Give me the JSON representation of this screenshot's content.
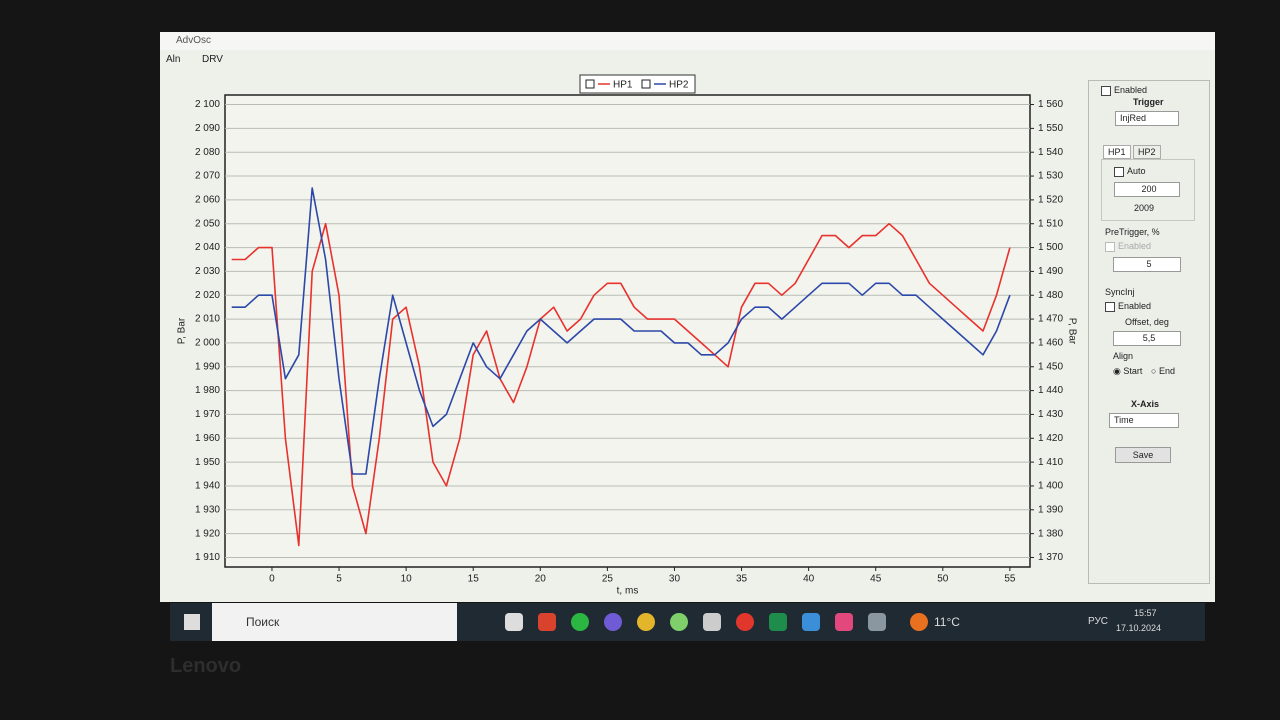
{
  "window": {
    "title": "AdvOsc",
    "menu": [
      "Aln",
      "DRV"
    ]
  },
  "chart_data": {
    "type": "line",
    "xlabel": "t, ms",
    "ylabel": "P, Bar",
    "y2label": "P, Bar",
    "x": [
      -3,
      -2,
      -1,
      0,
      1,
      2,
      3,
      4,
      5,
      6,
      7,
      8,
      9,
      10,
      11,
      12,
      13,
      14,
      15,
      16,
      17,
      18,
      19,
      20,
      21,
      22,
      23,
      24,
      25,
      26,
      27,
      28,
      29,
      30,
      31,
      32,
      33,
      34,
      35,
      36,
      37,
      38,
      39,
      40,
      41,
      42,
      43,
      44,
      45,
      46,
      47,
      48,
      49,
      50,
      51,
      52,
      53,
      54,
      55
    ],
    "series": [
      {
        "name": "HP1",
        "color": "#e8322e",
        "values": [
          2035,
          2035,
          2040,
          2040,
          1960,
          1915,
          2030,
          2050,
          2020,
          1940,
          1920,
          1960,
          2010,
          2015,
          1990,
          1950,
          1940,
          1960,
          1995,
          2005,
          1985,
          1975,
          1990,
          2010,
          2015,
          2005,
          2010,
          2020,
          2025,
          2025,
          2015,
          2010,
          2010,
          2010,
          2005,
          2000,
          1995,
          1990,
          2015,
          2025,
          2025,
          2020,
          2025,
          2035,
          2045,
          2045,
          2040,
          2045,
          2045,
          2050,
          2045,
          2035,
          2025,
          2020,
          2015,
          2010,
          2005,
          2020,
          2040
        ]
      },
      {
        "name": "HP2",
        "color": "#2c48a8",
        "axis": "y2",
        "values": [
          1475,
          1475,
          1480,
          1480,
          1445,
          1455,
          1525,
          1495,
          1445,
          1405,
          1405,
          1445,
          1480,
          1460,
          1440,
          1425,
          1430,
          1445,
          1460,
          1450,
          1445,
          1455,
          1465,
          1470,
          1465,
          1460,
          1465,
          1470,
          1470,
          1470,
          1465,
          1465,
          1465,
          1460,
          1460,
          1455,
          1455,
          1460,
          1470,
          1475,
          1475,
          1470,
          1475,
          1480,
          1485,
          1485,
          1485,
          1480,
          1485,
          1485,
          1480,
          1480,
          1475,
          1470,
          1465,
          1460,
          1455,
          1465,
          1480
        ]
      }
    ],
    "xlim": [
      -3.5,
      56.5
    ],
    "ylim": [
      1906,
      2104
    ],
    "y2lim": [
      1366,
      1564
    ],
    "xticks": [
      0,
      5,
      10,
      15,
      20,
      25,
      30,
      35,
      40,
      45,
      50,
      55
    ],
    "yticks": [
      {
        "value": 1910,
        "label": "1 910"
      },
      {
        "value": 1920,
        "label": "1 920"
      },
      {
        "value": 1930,
        "label": "1 930"
      },
      {
        "value": 1940,
        "label": "1 940"
      },
      {
        "value": 1950,
        "label": "1 950"
      },
      {
        "value": 1960,
        "label": "1 960"
      },
      {
        "value": 1970,
        "label": "1 970"
      },
      {
        "value": 1980,
        "label": "1 980"
      },
      {
        "value": 1990,
        "label": "1 990"
      },
      {
        "value": 2000,
        "label": "2 000"
      },
      {
        "value": 2010,
        "label": "2 010"
      },
      {
        "value": 2020,
        "label": "2 020"
      },
      {
        "value": 2030,
        "label": "2 030"
      },
      {
        "value": 2040,
        "label": "2 040"
      },
      {
        "value": 2050,
        "label": "2 050"
      },
      {
        "value": 2060,
        "label": "2 060"
      },
      {
        "value": 2070,
        "label": "2 070"
      },
      {
        "value": 2080,
        "label": "2 080"
      },
      {
        "value": 2090,
        "label": "2 090"
      },
      {
        "value": 2100,
        "label": "2 100"
      }
    ],
    "y2ticks": [
      {
        "value": 1370,
        "label": "1 370"
      },
      {
        "value": 1380,
        "label": "1 380"
      },
      {
        "value": 1390,
        "label": "1 390"
      },
      {
        "value": 1400,
        "label": "1 400"
      },
      {
        "value": 1410,
        "label": "1 410"
      },
      {
        "value": 1420,
        "label": "1 420"
      },
      {
        "value": 1430,
        "label": "1 430"
      },
      {
        "value": 1440,
        "label": "1 440"
      },
      {
        "value": 1450,
        "label": "1 450"
      },
      {
        "value": 1460,
        "label": "1 460"
      },
      {
        "value": 1470,
        "label": "1 470"
      },
      {
        "value": 1480,
        "label": "1 480"
      },
      {
        "value": 1490,
        "label": "1 490"
      },
      {
        "value": 1500,
        "label": "1 500"
      },
      {
        "value": 1510,
        "label": "1 510"
      },
      {
        "value": 1520,
        "label": "1 520"
      },
      {
        "value": 1530,
        "label": "1 530"
      },
      {
        "value": 1540,
        "label": "1 540"
      },
      {
        "value": 1550,
        "label": "1 550"
      },
      {
        "value": 1560,
        "label": "1 560"
      }
    ],
    "grid": true,
    "legend": "top"
  },
  "panel": {
    "enabled": "Enabled",
    "trigger_title": "Trigger",
    "trigger": "InjRed",
    "tabs": [
      "HP1",
      "HP2"
    ],
    "auto": "Auto",
    "level": 200,
    "level_value": 2009,
    "pretrigger_title": "PreTrigger, %",
    "pretrigger_enabled": "Enabled",
    "pretrigger": 5,
    "sync_title": "SyncInj",
    "sync_enabled": "Enabled",
    "offset_title": "Offset, deg",
    "offset": "5,5",
    "align_title": "Align",
    "align": [
      "Start",
      "End"
    ],
    "xaxis_title": "X-Axis",
    "xaxis": "Time",
    "save": "Save"
  },
  "taskbar": {
    "search": "Поиск",
    "temperature": "11°C",
    "language": "РУС",
    "time": "15:57",
    "date": "17.10.2024"
  },
  "bezel": {
    "brand": "Lenovo"
  }
}
